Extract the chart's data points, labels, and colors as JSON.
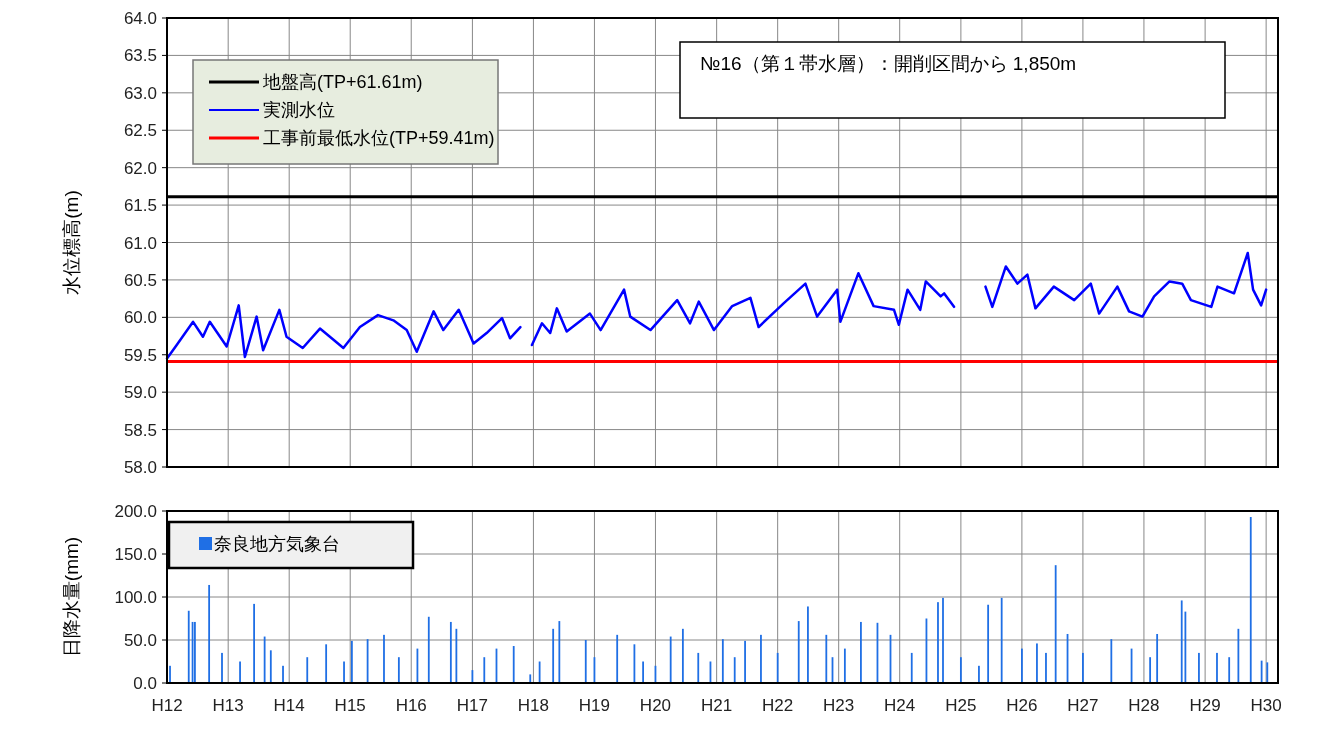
{
  "chart_data": [
    {
      "type": "line",
      "ylabel": "水位標高(m)",
      "annotations": [
        "№16（第１帯水層）：開削区間から 1,850m"
      ],
      "xlim": [
        "2000-01-01",
        "2018-03-13"
      ],
      "ylim": [
        58,
        64
      ],
      "xticks": [
        {
          "value": "2000-01-01",
          "label": null
        },
        {
          "value": "2001-01-01",
          "label": null
        },
        {
          "value": "2002-01-01",
          "label": null
        },
        {
          "value": "2003-01-01",
          "label": null
        },
        {
          "value": "2004-01-01",
          "label": null
        },
        {
          "value": "2005-01-01",
          "label": null
        },
        {
          "value": "2006-01-01",
          "label": null
        },
        {
          "value": "2007-01-01",
          "label": null
        },
        {
          "value": "2008-01-01",
          "label": null
        },
        {
          "value": "2009-01-01",
          "label": null
        },
        {
          "value": "2010-01-01",
          "label": null
        },
        {
          "value": "2011-01-01",
          "label": null
        },
        {
          "value": "2012-01-01",
          "label": null
        },
        {
          "value": "2013-01-01",
          "label": null
        },
        {
          "value": "2014-01-01",
          "label": null
        },
        {
          "value": "2015-01-01",
          "label": null
        },
        {
          "value": "2016-01-01",
          "label": null
        },
        {
          "value": "2017-01-01",
          "label": null
        },
        {
          "value": "2018-01-01",
          "label": null
        }
      ],
      "yticks": [
        {
          "value": 58,
          "label": "58.0"
        },
        {
          "value": 58.5,
          "label": "58.5"
        },
        {
          "value": 59,
          "label": "59.0"
        },
        {
          "value": 59.5,
          "label": "59.5"
        },
        {
          "value": 60,
          "label": "60.0"
        },
        {
          "value": 60.5,
          "label": "60.5"
        },
        {
          "value": 61,
          "label": "61.0"
        },
        {
          "value": 61.5,
          "label": "61.5"
        },
        {
          "value": 62,
          "label": "62.0"
        },
        {
          "value": 62.5,
          "label": "62.5"
        },
        {
          "value": 63,
          "label": "63.0"
        },
        {
          "value": 63.5,
          "label": "63.5"
        },
        {
          "value": 64,
          "label": "64.0"
        }
      ],
      "tick_labels": "y",
      "grid": true,
      "legend": "top left",
      "marker": "none",
      "line_style": "solid",
      "ref_lines": [
        {
          "axis": "y",
          "value": 61.61,
          "label": "地盤高(TP+61.61m)",
          "color": "#000000",
          "line_style": "solid"
        },
        {
          "axis": "y",
          "value": 59.41,
          "label": "工事前最低水位(TP+59.41m)",
          "color": "#ff0000",
          "line_style": "solid"
        }
      ],
      "series": [
        {
          "name": "実測水位",
          "color": "#0000ff",
          "x": [
            "2000-01-01",
            "2000-02-28",
            "2000-06-05",
            "2000-08-03",
            "2000-09-13",
            "2000-12-23",
            "2001-03-05",
            "2001-04-11",
            "2001-06-20",
            "2001-07-29",
            "2001-11-03",
            "2001-12-16",
            "2002-03-23",
            "2002-07-04",
            "2002-09-23",
            "2002-11-21",
            "2003-02-28",
            "2003-06-16",
            "2003-09-16",
            "2003-12-05",
            "2004-02-03",
            "2004-05-14",
            "2004-07-11",
            "2004-10-11",
            "2005-01-08",
            "2005-03-27",
            "2005-06-27",
            "2005-08-14",
            "2005-10-15",
            "2005-11-17",
            "2005-12-23",
            "2006-02-21",
            "2006-04-11",
            "2006-05-21",
            "2006-07-19",
            "2006-12-05",
            "2007-02-07",
            "2007-06-27",
            "2007-08-03",
            "2007-12-02",
            "2008-05-10",
            "2008-07-26",
            "2008-09-16",
            "2008-12-16",
            "2009-04-04",
            "2009-07-22",
            "2009-09-09",
            "2010-02-07",
            "2010-06-16",
            "2010-08-25",
            "2010-12-23",
            "2011-01-11",
            "2011-04-29",
            "2011-07-29",
            "2011-11-28",
            "2011-12-27",
            "2012-02-17",
            "2012-05-03",
            "2012-06-05",
            "2012-09-02",
            "2012-09-23",
            "2012-11-21",
            "2013-03-13",
            "2013-05-28",
            "2013-07-08",
            "2013-09-27",
            "2013-12-05",
            "2014-02-03",
            "2014-03-23",
            "2014-07-11",
            "2014-11-10",
            "2015-02-17",
            "2015-04-08",
            "2015-07-26",
            "2015-10-04",
            "2015-12-23",
            "2016-03-02",
            "2016-06-02",
            "2016-08-17",
            "2016-10-08",
            "2017-02-07",
            "2017-03-16",
            "2017-06-23",
            "2017-09-13",
            "2017-10-15",
            "2017-12-02",
            "2018-01-01"
          ],
          "values": [
            59.45,
            59.63,
            59.94,
            59.74,
            59.94,
            59.61,
            60.16,
            59.47,
            60.01,
            59.56,
            60.1,
            59.74,
            59.59,
            59.85,
            59.7,
            59.59,
            59.87,
            60.03,
            59.96,
            59.83,
            59.54,
            60.08,
            59.83,
            60.1,
            59.65,
            59.79,
            59.99,
            59.72,
            59.87,
            null,
            59.63,
            59.92,
            59.79,
            60.12,
            59.81,
            60.05,
            59.83,
            60.37,
            60.01,
            59.83,
            60.23,
            59.92,
            60.21,
            59.83,
            60.15,
            60.26,
            59.87,
            60.19,
            60.45,
            60.01,
            60.37,
            59.94,
            60.59,
            60.15,
            60.1,
            59.9,
            60.37,
            60.1,
            60.48,
            60.28,
            60.32,
            60.14,
            null,
            60.41,
            60.14,
            60.68,
            60.45,
            60.57,
            60.12,
            60.41,
            60.23,
            60.45,
            60.05,
            60.41,
            60.08,
            60.01,
            60.28,
            60.48,
            60.45,
            60.23,
            60.14,
            60.41,
            60.32,
            60.86,
            60.37,
            60.16,
            60.37
          ]
        }
      ]
    },
    {
      "type": "bar",
      "ylabel": "日降水量(mm)",
      "xlim": [
        "2000-01-01",
        "2018-03-13"
      ],
      "ylim": [
        0,
        200
      ],
      "xticks": [
        {
          "value": "2000-01-01",
          "label": "H12"
        },
        {
          "value": "2001-01-01",
          "label": "H13"
        },
        {
          "value": "2002-01-01",
          "label": "H14"
        },
        {
          "value": "2003-01-01",
          "label": "H15"
        },
        {
          "value": "2004-01-01",
          "label": "H16"
        },
        {
          "value": "2005-01-01",
          "label": "H17"
        },
        {
          "value": "2006-01-01",
          "label": "H18"
        },
        {
          "value": "2007-01-01",
          "label": "H19"
        },
        {
          "value": "2008-01-01",
          "label": "H20"
        },
        {
          "value": "2009-01-01",
          "label": "H21"
        },
        {
          "value": "2010-01-01",
          "label": "H22"
        },
        {
          "value": "2011-01-01",
          "label": "H23"
        },
        {
          "value": "2012-01-01",
          "label": "H24"
        },
        {
          "value": "2013-01-01",
          "label": "H25"
        },
        {
          "value": "2014-01-01",
          "label": "H26"
        },
        {
          "value": "2015-01-01",
          "label": "H27"
        },
        {
          "value": "2016-01-01",
          "label": "H28"
        },
        {
          "value": "2017-01-01",
          "label": "H29"
        },
        {
          "value": "2018-01-01",
          "label": "H30"
        }
      ],
      "yticks": [
        {
          "value": 0,
          "label": "0.0"
        },
        {
          "value": 50,
          "label": "50.0"
        },
        {
          "value": 100,
          "label": "100.0"
        },
        {
          "value": 150,
          "label": "150.0"
        },
        {
          "value": 200,
          "label": "200.0"
        }
      ],
      "grid": true,
      "legend": "top left",
      "series": [
        {
          "name": "奈良地方気象台",
          "color": "#1f6fe5",
          "x": [
            "2000-01-19",
            "2000-05-10",
            "2000-06-02",
            "2000-06-16",
            "2000-09-09",
            "2000-11-25",
            "2001-03-13",
            "2001-06-05",
            "2001-08-07",
            "2001-09-13",
            "2001-11-25",
            "2002-04-19",
            "2002-08-10",
            "2002-11-25",
            "2003-01-11",
            "2003-04-15",
            "2003-07-22",
            "2003-10-19",
            "2004-02-07",
            "2004-04-15",
            "2004-08-25",
            "2004-09-27",
            "2005-01-01",
            "2005-03-13",
            "2005-05-25",
            "2005-09-05",
            "2005-12-13",
            "2006-02-07",
            "2006-04-29",
            "2006-06-05",
            "2006-11-10",
            "2007-01-01",
            "2007-05-17",
            "2007-08-28",
            "2007-10-19",
            "2008-01-01",
            "2008-04-01",
            "2008-06-13",
            "2008-09-13",
            "2008-11-25",
            "2009-02-07",
            "2009-04-19",
            "2009-06-20",
            "2009-09-23",
            "2010-01-01",
            "2010-05-07",
            "2010-07-01",
            "2010-10-19",
            "2010-11-25",
            "2011-02-07",
            "2011-05-14",
            "2011-08-21",
            "2011-11-07",
            "2012-03-13",
            "2012-06-09",
            "2012-08-17",
            "2012-09-16",
            "2013-01-01",
            "2013-04-19",
            "2013-06-13",
            "2013-09-02",
            "2014-01-01",
            "2014-04-01",
            "2014-05-25",
            "2014-07-22",
            "2014-10-01",
            "2015-01-01",
            "2015-06-20",
            "2015-10-19",
            "2016-02-07",
            "2016-03-20",
            "2016-08-14",
            "2016-09-05",
            "2016-11-25",
            "2017-03-13",
            "2017-05-25",
            "2017-07-19",
            "2017-10-01",
            "2017-12-05",
            "2018-01-08"
          ],
          "values": [
            20,
            84,
            71,
            71,
            114,
            35,
            25,
            92,
            54,
            38,
            20,
            30,
            45,
            25,
            49,
            51,
            56,
            30,
            40,
            77,
            71,
            63,
            15,
            30,
            40,
            43,
            10,
            25,
            63,
            72,
            50,
            30,
            56,
            45,
            25,
            20,
            54,
            63,
            35,
            25,
            51,
            30,
            49,
            56,
            35,
            72,
            89,
            56,
            30,
            40,
            71,
            70,
            56,
            35,
            75,
            94,
            99,
            30,
            20,
            91,
            99,
            40,
            46,
            35,
            137,
            57,
            35,
            51,
            40,
            30,
            57,
            96,
            83,
            35,
            35,
            30,
            63,
            193,
            26,
            24
          ]
        }
      ]
    }
  ]
}
